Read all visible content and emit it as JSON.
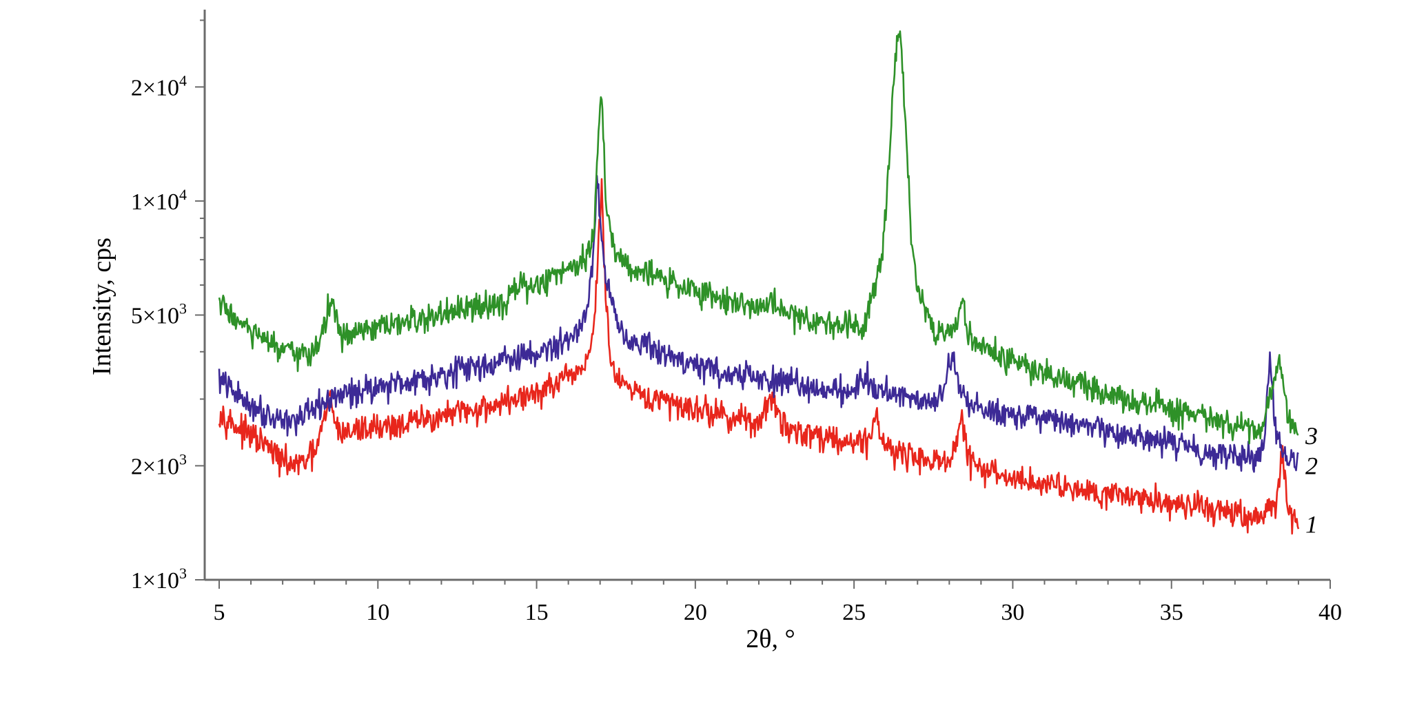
{
  "chart_data": {
    "type": "line",
    "xlabel": "2θ, °",
    "ylabel": "Intensity, cps",
    "xlim": [
      5,
      40
    ],
    "ylim": [
      1000,
      32000
    ],
    "y_scale": "log",
    "grid": false,
    "x_ticks": [
      5,
      10,
      15,
      20,
      25,
      30,
      35,
      40
    ],
    "y_ticks": [
      {
        "value": 1000,
        "mantissa": "1×10",
        "exp": "3"
      },
      {
        "value": 2000,
        "mantissa": "2×10",
        "exp": "3"
      },
      {
        "value": 5000,
        "mantissa": "5×10",
        "exp": "3"
      },
      {
        "value": 10000,
        "mantissa": "1×10",
        "exp": "4"
      },
      {
        "value": 20000,
        "mantissa": "2×10",
        "exp": "4"
      }
    ],
    "series": [
      {
        "label": "1",
        "color": "#e8261c",
        "x": [
          5,
          5.5,
          6,
          6.5,
          7,
          7.5,
          8,
          8.3,
          8.5,
          8.7,
          9,
          9.5,
          10,
          10.5,
          11,
          12,
          13,
          14,
          15,
          15.5,
          16,
          16.5,
          16.8,
          16.95,
          17.05,
          17.15,
          17.3,
          17.5,
          18,
          19,
          20,
          21,
          22,
          22.4,
          22.7,
          23,
          24,
          25,
          25.5,
          25.7,
          25.9,
          26.5,
          27,
          28,
          28.2,
          28.4,
          28.6,
          29,
          30,
          31,
          32,
          33,
          34,
          35,
          36,
          37,
          37.8,
          38.3,
          38.5,
          38.7,
          39
        ],
        "y": [
          2800,
          2550,
          2400,
          2250,
          2050,
          2000,
          2150,
          2600,
          3050,
          2500,
          2450,
          2500,
          2550,
          2550,
          2600,
          2700,
          2800,
          2950,
          3100,
          3250,
          3400,
          3650,
          4500,
          7800,
          11000,
          6000,
          4000,
          3400,
          3100,
          2950,
          2850,
          2700,
          2600,
          3000,
          2600,
          2500,
          2400,
          2300,
          2350,
          2800,
          2300,
          2150,
          2100,
          2050,
          2200,
          2700,
          2100,
          1950,
          1850,
          1800,
          1750,
          1700,
          1650,
          1600,
          1550,
          1500,
          1450,
          1600,
          2100,
          1550,
          1400
        ]
      },
      {
        "label": "2",
        "color": "#3d2a96",
        "x": [
          5,
          5.5,
          6,
          6.5,
          7,
          7.5,
          8,
          8.5,
          9,
          10,
          11,
          12,
          13,
          14,
          15,
          15.5,
          16,
          16.3,
          16.6,
          16.8,
          16.9,
          17.05,
          17.3,
          17.6,
          18,
          19,
          20,
          21,
          22,
          23,
          24,
          25,
          25.4,
          25.6,
          25.9,
          26.5,
          27,
          27.6,
          27.9,
          28.1,
          28.3,
          28.6,
          29,
          30,
          31,
          32,
          33,
          34,
          35,
          36,
          37,
          37.6,
          37.9,
          38.1,
          38.3,
          38.6,
          39
        ],
        "y": [
          3400,
          3100,
          2900,
          2750,
          2650,
          2650,
          2800,
          3000,
          3100,
          3250,
          3350,
          3500,
          3650,
          3800,
          3950,
          4100,
          4300,
          4600,
          5200,
          7500,
          11800,
          8000,
          5500,
          4700,
          4300,
          3950,
          3700,
          3500,
          3400,
          3300,
          3200,
          3150,
          3500,
          3200,
          3150,
          3100,
          3000,
          3000,
          3300,
          4000,
          3200,
          2900,
          2850,
          2750,
          2650,
          2550,
          2450,
          2350,
          2300,
          2200,
          2150,
          2100,
          2300,
          3600,
          2400,
          2100,
          2000
        ]
      },
      {
        "label": "3",
        "color": "#2e9128",
        "x": [
          5,
          5.5,
          6,
          6.5,
          7,
          7.5,
          8,
          8.3,
          8.5,
          8.8,
          9,
          10,
          11,
          12,
          13,
          14,
          14.5,
          15,
          15.5,
          16,
          16.5,
          16.8,
          16.95,
          17.05,
          17.2,
          17.5,
          18,
          19,
          20,
          21,
          22,
          22.4,
          23,
          24,
          25,
          25.3,
          25.6,
          25.9,
          26.1,
          26.3,
          26.45,
          26.6,
          26.8,
          27,
          27.5,
          28,
          28.2,
          28.4,
          28.6,
          29,
          30,
          31,
          32,
          33,
          34,
          35,
          36,
          37,
          37.8,
          38.2,
          38.4,
          38.6,
          38.8,
          39
        ],
        "y": [
          5400,
          4900,
          4500,
          4250,
          4000,
          3900,
          4050,
          4600,
          5500,
          4500,
          4400,
          4600,
          4800,
          5000,
          5200,
          5500,
          5900,
          6000,
          6300,
          6700,
          7100,
          8000,
          15000,
          20000,
          9500,
          7200,
          6700,
          6200,
          5800,
          5500,
          5200,
          5400,
          5000,
          4800,
          4700,
          4700,
          5800,
          7500,
          13000,
          24000,
          28000,
          18000,
          8000,
          6000,
          4600,
          4400,
          4700,
          5500,
          4400,
          4100,
          3800,
          3500,
          3300,
          3100,
          2950,
          2800,
          2700,
          2550,
          2400,
          3300,
          3900,
          3000,
          2500,
          2400
        ]
      }
    ]
  }
}
